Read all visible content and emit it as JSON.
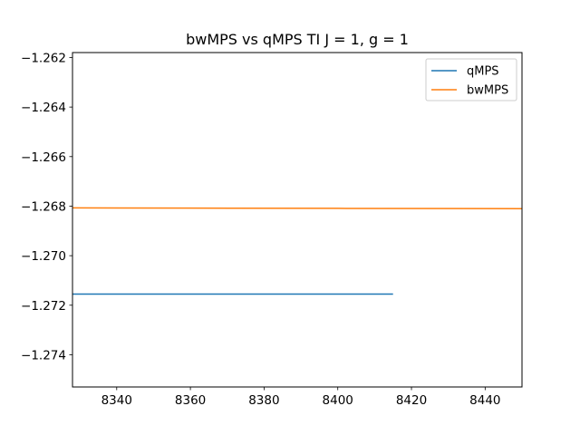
{
  "chart_data": {
    "type": "line",
    "title": "bwMPS vs qMPS TI J = 1, g = 1",
    "xlabel": "",
    "ylabel": "",
    "xlim": [
      8328,
      8450
    ],
    "ylim": [
      -1.2753,
      -1.2618
    ],
    "xticks": [
      8340,
      8360,
      8380,
      8400,
      8420,
      8440
    ],
    "yticks": [
      -1.274,
      -1.272,
      -1.27,
      -1.268,
      -1.266,
      -1.264,
      -1.262
    ],
    "xtick_labels": [
      "8340",
      "8360",
      "8380",
      "8400",
      "8420",
      "8440"
    ],
    "ytick_labels": [
      "−1.274",
      "−1.272",
      "−1.270",
      "−1.268",
      "−1.266",
      "−1.264",
      "−1.262"
    ],
    "grid": false,
    "legend_position": "top-right",
    "series": [
      {
        "name": "qMPS",
        "color": "#1f77b4",
        "x": [
          8328,
          8350,
          8375,
          8400,
          8415
        ],
        "y": [
          -1.27155,
          -1.27155,
          -1.27155,
          -1.27155,
          -1.27155
        ]
      },
      {
        "name": "bwMPS",
        "color": "#ff7f0e",
        "x": [
          8328,
          8360,
          8400,
          8450
        ],
        "y": [
          -1.26807,
          -1.26808,
          -1.26809,
          -1.2681
        ]
      }
    ]
  }
}
